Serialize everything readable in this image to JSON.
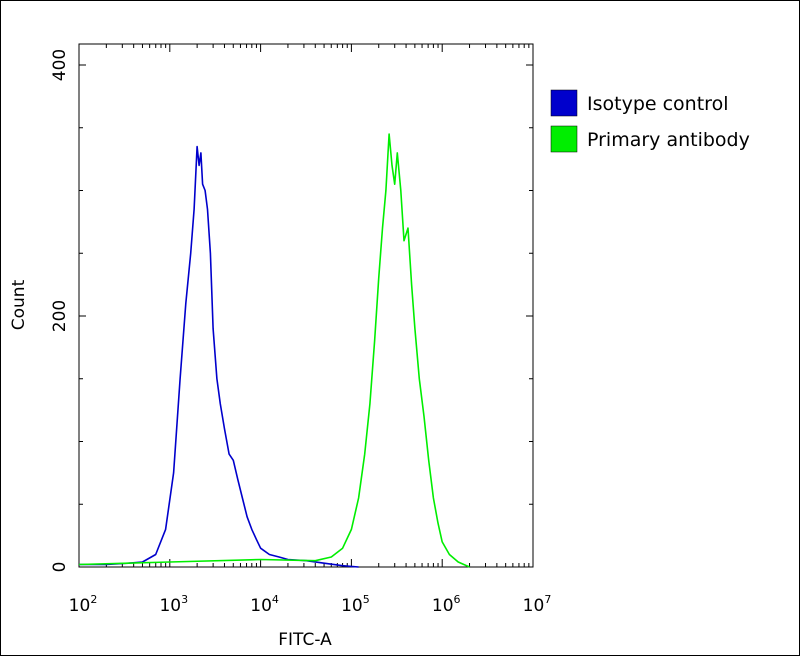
{
  "chart_data": {
    "type": "line",
    "title": "",
    "xlabel": "FITC-A",
    "ylabel": "Count",
    "x_scale": "log",
    "xlim": [
      100,
      10000000
    ],
    "ylim": [
      0,
      400
    ],
    "x_ticks": [
      {
        "base": "10",
        "exp": "2",
        "value": 100
      },
      {
        "base": "10",
        "exp": "3",
        "value": 1000
      },
      {
        "base": "10",
        "exp": "4",
        "value": 10000
      },
      {
        "base": "10",
        "exp": "5",
        "value": 100000
      },
      {
        "base": "10",
        "exp": "6",
        "value": 1000000
      },
      {
        "base": "10",
        "exp": "7",
        "value": 10000000
      }
    ],
    "y_ticks": [
      {
        "label": "0",
        "value": 0
      },
      {
        "label": "200",
        "value": 200
      },
      {
        "label": "400",
        "value": 400
      }
    ],
    "grid": false,
    "legend_position": "right",
    "series": [
      {
        "name": "Isotype control",
        "color": "#0000cc",
        "x": [
          100,
          200,
          350,
          500,
          700,
          900,
          1100,
          1300,
          1500,
          1700,
          1850,
          2000,
          2100,
          2200,
          2300,
          2450,
          2600,
          2800,
          3000,
          3300,
          3600,
          4000,
          4500,
          5000,
          5600,
          6300,
          7100,
          8000,
          9000,
          10000,
          12500,
          16000,
          20000,
          32000,
          50000,
          80000,
          120000
        ],
        "y": [
          2,
          2,
          3,
          4,
          10,
          30,
          75,
          150,
          210,
          250,
          285,
          335,
          320,
          330,
          305,
          300,
          285,
          250,
          190,
          150,
          130,
          110,
          90,
          85,
          70,
          55,
          40,
          30,
          22,
          15,
          10,
          8,
          6,
          5,
          3,
          1,
          0
        ]
      },
      {
        "name": "Primary antibody",
        "color": "#00ee00",
        "x": [
          100,
          1000,
          10000,
          40000,
          60000,
          80000,
          100000,
          120000,
          140000,
          160000,
          180000,
          200000,
          220000,
          240000,
          260000,
          280000,
          300000,
          320000,
          350000,
          380000,
          420000,
          460000,
          500000,
          560000,
          630000,
          710000,
          800000,
          900000,
          1000000,
          1200000,
          1500000,
          2000000
        ],
        "y": [
          2,
          4,
          6,
          5,
          8,
          15,
          30,
          55,
          90,
          130,
          180,
          230,
          270,
          300,
          345,
          320,
          305,
          330,
          300,
          260,
          270,
          225,
          190,
          150,
          120,
          85,
          55,
          35,
          20,
          10,
          4,
          0
        ]
      }
    ]
  }
}
